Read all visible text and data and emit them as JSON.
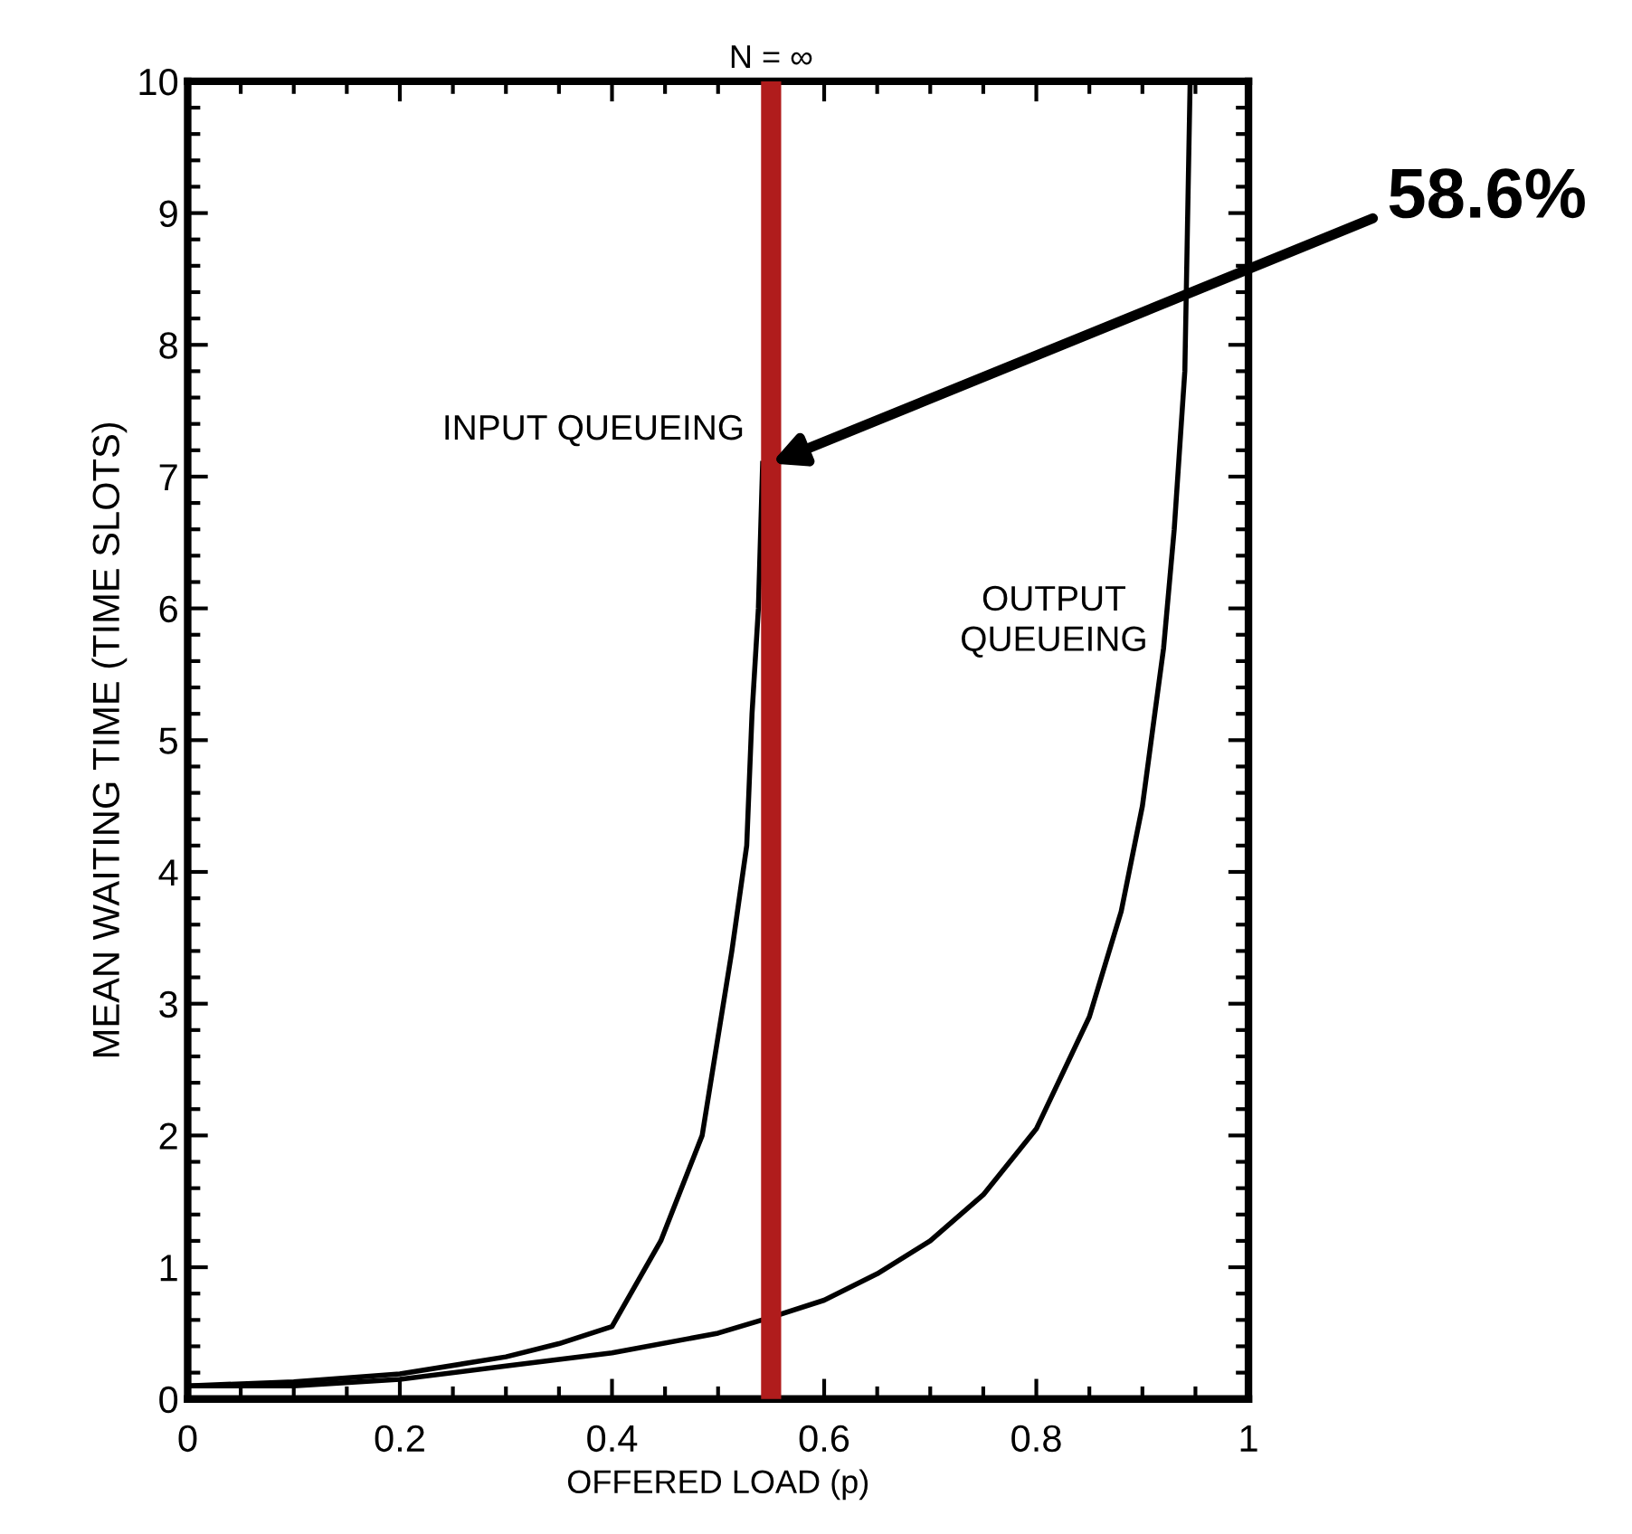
{
  "chart_data": {
    "type": "line",
    "xlabel": "OFFERED LOAD (p)",
    "ylabel": "MEAN WAITING TIME (TIME SLOTS)",
    "series": [
      {
        "color": "#000000",
        "x": [
          0,
          0.1,
          0.2,
          0.3,
          0.35,
          0.4,
          0.446,
          0.485,
          0.513,
          0.527,
          0.532,
          0.538,
          0.542
        ],
        "values": [
          0.1,
          0.13,
          0.19,
          0.32,
          0.42,
          0.55,
          1.2,
          2.0,
          3.4,
          4.2,
          5.2,
          6.0,
          7.1
        ]
      },
      {
        "color": "#000000",
        "x": [
          0,
          0.1,
          0.2,
          0.3,
          0.4,
          0.5,
          0.55,
          0.6,
          0.65,
          0.7,
          0.75,
          0.8,
          0.85,
          0.88,
          0.9,
          0.92,
          0.93,
          0.94,
          0.945
        ],
        "values": [
          0.1,
          0.1,
          0.15,
          0.25,
          0.35,
          0.5,
          0.62,
          0.75,
          0.95,
          1.2,
          1.55,
          2.05,
          2.9,
          3.7,
          4.5,
          5.7,
          6.6,
          7.8,
          10
        ]
      }
    ],
    "xlim": [
      0,
      1
    ],
    "ylim": [
      0,
      10
    ],
    "xticks": [
      0,
      {
        "value": 0.05,
        "label": null
      },
      {
        "value": 0.1,
        "label": null
      },
      {
        "value": 0.15,
        "label": null
      },
      0.2,
      {
        "value": 0.25,
        "label": null
      },
      {
        "value": 0.3,
        "label": null
      },
      {
        "value": 0.35,
        "label": null
      },
      0.4,
      {
        "value": 0.45,
        "label": null
      },
      {
        "value": 0.5,
        "label": null
      },
      {
        "value": 0.55,
        "label": null
      },
      0.6,
      {
        "value": 0.65,
        "label": null
      },
      {
        "value": 0.7,
        "label": null
      },
      {
        "value": 0.75,
        "label": null
      },
      0.8,
      {
        "value": 0.85,
        "label": null
      },
      {
        "value": 0.9,
        "label": null
      },
      {
        "value": 0.95,
        "label": null
      },
      1
    ],
    "yticks": [
      0,
      {
        "value": 0.2,
        "label": null
      },
      {
        "value": 0.4,
        "label": null
      },
      {
        "value": 0.6,
        "label": null
      },
      {
        "value": 0.8,
        "label": null
      },
      1,
      {
        "value": 1.2,
        "label": null
      },
      {
        "value": 1.4,
        "label": null
      },
      {
        "value": 1.6,
        "label": null
      },
      {
        "value": 1.8,
        "label": null
      },
      2,
      {
        "value": 2.2,
        "label": null
      },
      {
        "value": 2.4,
        "label": null
      },
      {
        "value": 2.6,
        "label": null
      },
      {
        "value": 2.8,
        "label": null
      },
      3,
      {
        "value": 3.2,
        "label": null
      },
      {
        "value": 3.4,
        "label": null
      },
      {
        "value": 3.6,
        "label": null
      },
      {
        "value": 3.8,
        "label": null
      },
      4,
      {
        "value": 4.2,
        "label": null
      },
      {
        "value": 4.4,
        "label": null
      },
      {
        "value": 4.6,
        "label": null
      },
      {
        "value": 4.8,
        "label": null
      },
      5,
      {
        "value": 5.2,
        "label": null
      },
      {
        "value": 5.4,
        "label": null
      },
      {
        "value": 5.6,
        "label": null
      },
      {
        "value": 5.8,
        "label": null
      },
      6,
      {
        "value": 6.2,
        "label": null
      },
      {
        "value": 6.4,
        "label": null
      },
      {
        "value": 6.6,
        "label": null
      },
      {
        "value": 6.8,
        "label": null
      },
      7,
      {
        "value": 7.2,
        "label": null
      },
      {
        "value": 7.4,
        "label": null
      },
      {
        "value": 7.6,
        "label": null
      },
      {
        "value": 7.8,
        "label": null
      },
      8,
      {
        "value": 8.2,
        "label": null
      },
      {
        "value": 8.4,
        "label": null
      },
      {
        "value": 8.6,
        "label": null
      },
      {
        "value": 8.8,
        "label": null
      },
      9,
      {
        "value": 9.2,
        "label": null
      },
      {
        "value": 9.4,
        "label": null
      },
      {
        "value": 9.6,
        "label": null
      },
      {
        "value": 9.8,
        "label": null
      },
      10
    ],
    "ref_lines": [
      {
        "axis": "x",
        "value": 0.55,
        "label": "N = ∞",
        "color": "#b01c1c"
      }
    ],
    "annotations": [
      "INPUT QUEUEING",
      "OUTPUT\nQUEUEING",
      "58.6%"
    ],
    "grid": false,
    "marker": "none",
    "line_style": "solid"
  }
}
